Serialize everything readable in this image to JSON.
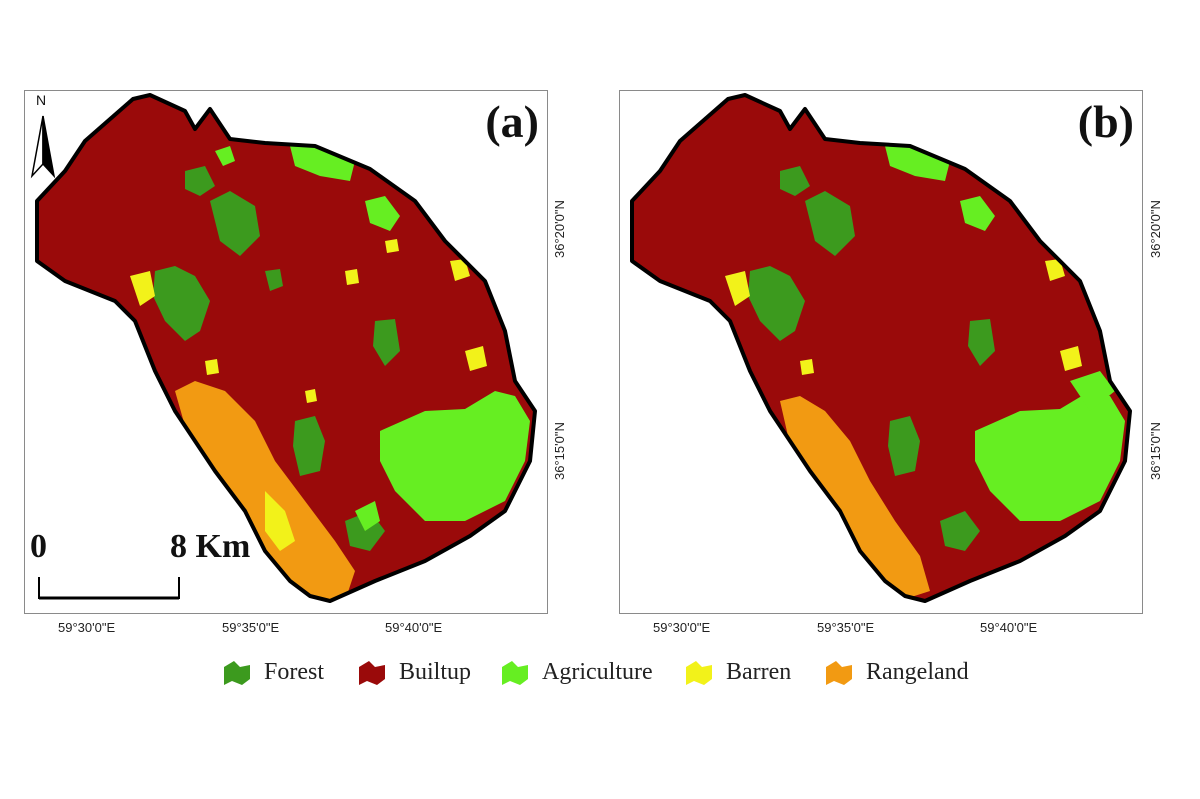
{
  "panels": [
    {
      "label": "(a)"
    },
    {
      "label": "(b)"
    }
  ],
  "latitude_labels": [
    "36°20'0\"N",
    "36°15'0\"N"
  ],
  "longitude_labels": [
    "59°30'0\"E",
    "59°35'0\"E",
    "59°40'0\"E"
  ],
  "north_arrow": {
    "letter": "N"
  },
  "scale": {
    "start": "0",
    "end": "8 Km"
  },
  "legend": [
    {
      "label": "Forest",
      "color": "#3c9a1e"
    },
    {
      "label": "Builtup",
      "color": "#9a0a0a"
    },
    {
      "label": "Agriculture",
      "color": "#66ee22"
    },
    {
      "label": "Barren",
      "color": "#f2f21a"
    },
    {
      "label": "Rangeland",
      "color": "#f29a12"
    }
  ],
  "colors": {
    "forest": "#3c9a1e",
    "builtup": "#9a0a0a",
    "agriculture": "#66ee22",
    "barren": "#f2f21a",
    "rangeland": "#f29a12",
    "boundary": "#000000"
  }
}
